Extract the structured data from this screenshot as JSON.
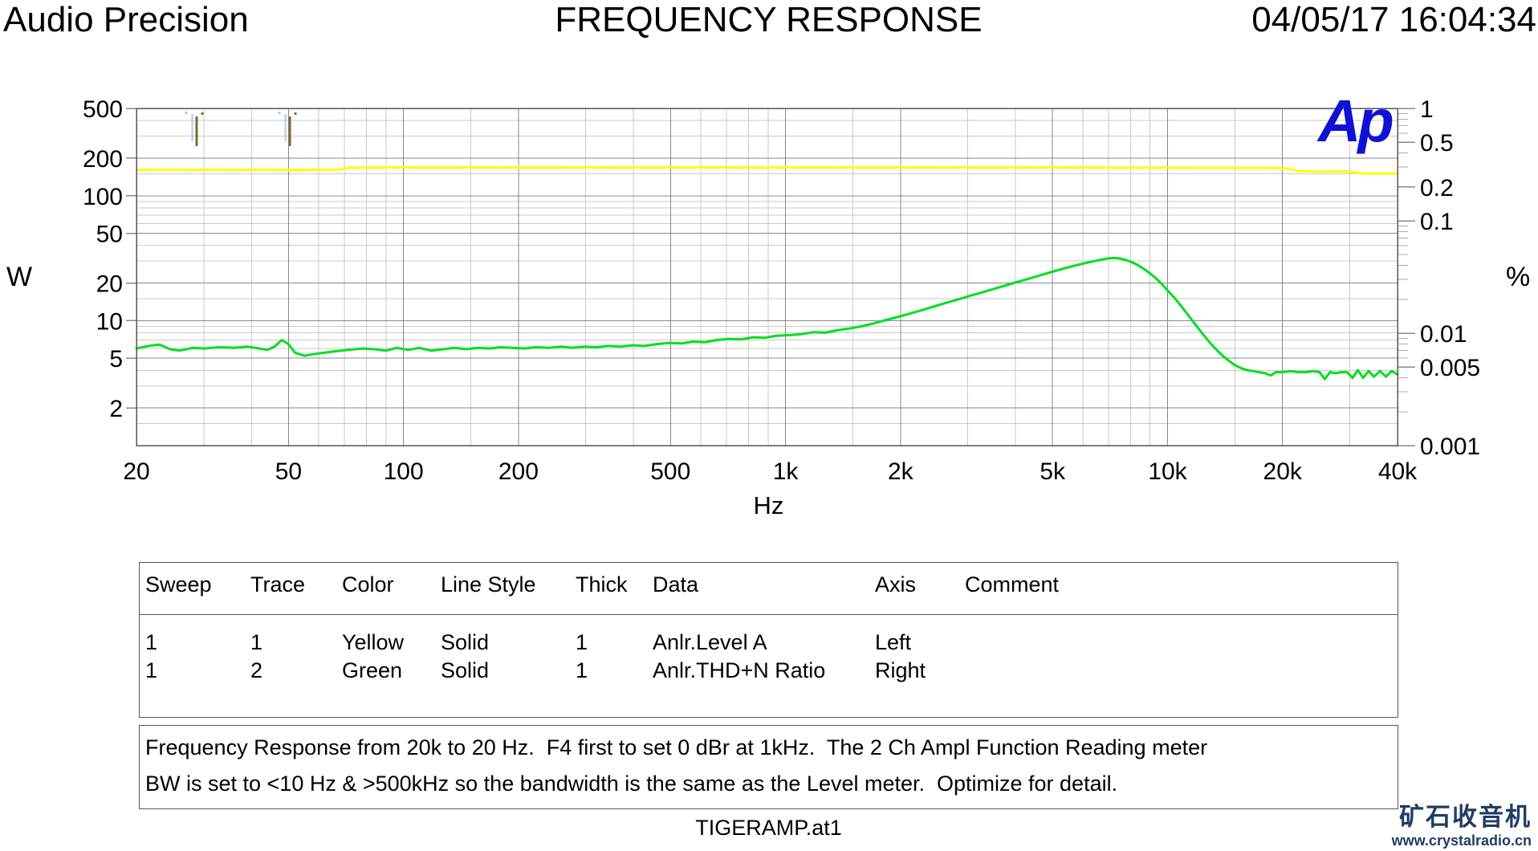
{
  "header": {
    "app_name": "Audio Precision",
    "title": "FREQUENCY RESPONSE",
    "timestamp": "04/05/17 16:04:34"
  },
  "logo": "Ap",
  "chart_data": {
    "type": "line",
    "title": "FREQUENCY RESPONSE",
    "grid": true,
    "colors": {
      "grid_major": "#888888",
      "grid_minor": "#c9c9c9",
      "border": "#555555",
      "marker_blue": "#a9cbe9",
      "marker_olive": "#7d6a33"
    },
    "x_axis": {
      "label": "Hz",
      "scale": "log",
      "min": 20,
      "max": 40000,
      "major_ticks": [
        {
          "f": 20,
          "label": "20"
        },
        {
          "f": 50,
          "label": "50"
        },
        {
          "f": 100,
          "label": "100"
        },
        {
          "f": 200,
          "label": "200"
        },
        {
          "f": 500,
          "label": "500"
        },
        {
          "f": 1000,
          "label": "1k"
        },
        {
          "f": 2000,
          "label": "2k"
        },
        {
          "f": 5000,
          "label": "5k"
        },
        {
          "f": 10000,
          "label": "10k"
        },
        {
          "f": 20000,
          "label": "20k"
        },
        {
          "f": 40000,
          "label": "40k"
        }
      ],
      "minor_ticks": [
        30,
        40,
        60,
        70,
        80,
        90,
        150,
        300,
        400,
        600,
        700,
        800,
        900,
        1500,
        3000,
        4000,
        6000,
        7000,
        8000,
        9000,
        15000,
        30000
      ]
    },
    "left_axis": {
      "label": "W",
      "scale": "log",
      "min": 1,
      "max": 500,
      "major_ticks": [
        {
          "v": 500,
          "label": "500"
        },
        {
          "v": 200,
          "label": "200"
        },
        {
          "v": 100,
          "label": "100"
        },
        {
          "v": 50,
          "label": "50"
        },
        {
          "v": 20,
          "label": "20"
        },
        {
          "v": 10,
          "label": "10"
        },
        {
          "v": 5,
          "label": "5"
        },
        {
          "v": 2,
          "label": "2"
        }
      ],
      "minor_ticks": [
        400,
        300,
        150,
        90,
        80,
        70,
        60,
        40,
        30,
        15,
        9,
        8,
        7,
        6,
        4,
        3,
        1.5
      ]
    },
    "right_axis": {
      "label": "%",
      "scale": "log",
      "min": 0.001,
      "max": 1,
      "major_ticks": [
        {
          "v": 1,
          "label": "1"
        },
        {
          "v": 0.5,
          "label": "0.5"
        },
        {
          "v": 0.2,
          "label": "0.2"
        },
        {
          "v": 0.1,
          "label": "0.1"
        },
        {
          "v": 0.01,
          "label": "0.01"
        },
        {
          "v": 0.005,
          "label": "0.005"
        },
        {
          "v": 0.001,
          "label": "0.001"
        }
      ],
      "minor_ticks": [
        0.9,
        0.8,
        0.7,
        0.6,
        0.4,
        0.3,
        0.09,
        0.08,
        0.07,
        0.06,
        0.05,
        0.04,
        0.03,
        0.02,
        0.009,
        0.008,
        0.007,
        0.006,
        0.004,
        0.003,
        0.002
      ]
    },
    "cursor_markers": [
      {
        "hz": 28.4
      },
      {
        "hz": 49.8
      }
    ],
    "series": [
      {
        "name": "Anlr.Level A",
        "axis": "left",
        "units": "W",
        "color": "#ffff00",
        "points": [
          [
            20,
            161
          ],
          [
            24,
            162
          ],
          [
            28,
            161
          ],
          [
            33,
            161.5
          ],
          [
            38,
            161
          ],
          [
            44,
            161.5
          ],
          [
            50,
            161
          ],
          [
            57,
            161
          ],
          [
            63,
            161.5
          ],
          [
            68,
            162
          ],
          [
            73,
            168
          ],
          [
            82,
            168
          ],
          [
            95,
            168.5
          ],
          [
            120,
            168
          ],
          [
            160,
            168.5
          ],
          [
            220,
            168
          ],
          [
            300,
            168.5
          ],
          [
            420,
            168
          ],
          [
            600,
            168.5
          ],
          [
            850,
            168
          ],
          [
            1200,
            168.5
          ],
          [
            1700,
            168
          ],
          [
            2400,
            168.5
          ],
          [
            3400,
            168
          ],
          [
            4800,
            168.5
          ],
          [
            6800,
            168
          ],
          [
            9600,
            168
          ],
          [
            13000,
            167.5
          ],
          [
            16000,
            167
          ],
          [
            19000,
            166.5
          ],
          [
            20500,
            165
          ],
          [
            21300,
            161
          ],
          [
            22000,
            157
          ],
          [
            23500,
            156.5
          ],
          [
            25500,
            156
          ],
          [
            27500,
            156.5
          ],
          [
            29500,
            156
          ],
          [
            30800,
            154
          ],
          [
            32000,
            151
          ],
          [
            34000,
            150.5
          ],
          [
            36500,
            151
          ],
          [
            38500,
            150.5
          ],
          [
            40000,
            150.5
          ]
        ]
      },
      {
        "name": "Anlr.THD+N Ratio",
        "axis": "right",
        "units": "%",
        "color": "#00df1f",
        "points": [
          [
            20,
            0.0073
          ],
          [
            21.5,
            0.0077
          ],
          [
            23,
            0.0079
          ],
          [
            24.5,
            0.0072
          ],
          [
            26,
            0.007
          ],
          [
            28,
            0.0074
          ],
          [
            30,
            0.0073
          ],
          [
            33,
            0.0075
          ],
          [
            36,
            0.0074
          ],
          [
            39,
            0.0076
          ],
          [
            42,
            0.0073
          ],
          [
            44,
            0.0071
          ],
          [
            46,
            0.0076
          ],
          [
            48,
            0.0087
          ],
          [
            50,
            0.008
          ],
          [
            52,
            0.0067
          ],
          [
            55,
            0.0063
          ],
          [
            58,
            0.0065
          ],
          [
            62,
            0.0067
          ],
          [
            66,
            0.0069
          ],
          [
            72,
            0.0071
          ],
          [
            78,
            0.0073
          ],
          [
            84,
            0.0072
          ],
          [
            90,
            0.007
          ],
          [
            96,
            0.0074
          ],
          [
            103,
            0.0071
          ],
          [
            110,
            0.0074
          ],
          [
            118,
            0.007
          ],
          [
            127,
            0.0072
          ],
          [
            136,
            0.0074
          ],
          [
            146,
            0.0072
          ],
          [
            157,
            0.0074
          ],
          [
            168,
            0.0073
          ],
          [
            180,
            0.0075
          ],
          [
            193,
            0.0074
          ],
          [
            207,
            0.0073
          ],
          [
            222,
            0.0075
          ],
          [
            240,
            0.0074
          ],
          [
            258,
            0.0076
          ],
          [
            277,
            0.0074
          ],
          [
            298,
            0.0076
          ],
          [
            320,
            0.0075
          ],
          [
            344,
            0.0077
          ],
          [
            370,
            0.0076
          ],
          [
            398,
            0.0078
          ],
          [
            428,
            0.0077
          ],
          [
            460,
            0.008
          ],
          [
            495,
            0.0082
          ],
          [
            532,
            0.0081
          ],
          [
            572,
            0.0084
          ],
          [
            615,
            0.0083
          ],
          [
            661,
            0.0087
          ],
          [
            711,
            0.0089
          ],
          [
            764,
            0.0088
          ],
          [
            822,
            0.0092
          ],
          [
            884,
            0.0091
          ],
          [
            950,
            0.0095
          ],
          [
            1020,
            0.0096
          ],
          [
            1100,
            0.0098
          ],
          [
            1180,
            0.0102
          ],
          [
            1270,
            0.0101
          ],
          [
            1360,
            0.0106
          ],
          [
            1470,
            0.011
          ],
          [
            1580,
            0.0115
          ],
          [
            1700,
            0.0122
          ],
          [
            1820,
            0.013
          ],
          [
            1960,
            0.0139
          ],
          [
            2110,
            0.0149
          ],
          [
            2270,
            0.016
          ],
          [
            2440,
            0.0172
          ],
          [
            2620,
            0.0185
          ],
          [
            2820,
            0.0199
          ],
          [
            3030,
            0.0214
          ],
          [
            3260,
            0.023
          ],
          [
            3500,
            0.0247
          ],
          [
            3770,
            0.0266
          ],
          [
            4050,
            0.0286
          ],
          [
            4360,
            0.0307
          ],
          [
            4680,
            0.033
          ],
          [
            5040,
            0.0355
          ],
          [
            5410,
            0.038
          ],
          [
            5820,
            0.0405
          ],
          [
            6260,
            0.043
          ],
          [
            6730,
            0.0452
          ],
          [
            7000,
            0.0463
          ],
          [
            7230,
            0.0468
          ],
          [
            7500,
            0.0462
          ],
          [
            7780,
            0.0448
          ],
          [
            8070,
            0.0428
          ],
          [
            8370,
            0.0402
          ],
          [
            8680,
            0.0372
          ],
          [
            9000,
            0.034
          ],
          [
            9340,
            0.0306
          ],
          [
            9680,
            0.0272
          ],
          [
            10000,
            0.024
          ],
          [
            10420,
            0.0207
          ],
          [
            10800,
            0.0178
          ],
          [
            11200,
            0.0152
          ],
          [
            11620,
            0.0129
          ],
          [
            12050,
            0.011
          ],
          [
            12500,
            0.0094
          ],
          [
            12960,
            0.0081
          ],
          [
            13440,
            0.0071
          ],
          [
            13940,
            0.0063
          ],
          [
            14460,
            0.0057
          ],
          [
            15000,
            0.0052
          ],
          [
            15550,
            0.0049
          ],
          [
            16130,
            0.0047
          ],
          [
            16730,
            0.0046
          ],
          [
            17350,
            0.0045
          ],
          [
            18000,
            0.0044
          ],
          [
            18600,
            0.0042
          ],
          [
            19200,
            0.0045
          ],
          [
            20000,
            0.0045
          ],
          [
            21000,
            0.0046
          ],
          [
            22000,
            0.0045
          ],
          [
            23000,
            0.0045
          ],
          [
            24000,
            0.0046
          ],
          [
            25000,
            0.0045
          ],
          [
            25800,
            0.0039
          ],
          [
            26600,
            0.0045
          ],
          [
            27500,
            0.0044
          ],
          [
            28500,
            0.0045
          ],
          [
            29500,
            0.0045
          ],
          [
            30500,
            0.004
          ],
          [
            31500,
            0.0047
          ],
          [
            32500,
            0.004
          ],
          [
            33600,
            0.0046
          ],
          [
            34700,
            0.0041
          ],
          [
            36000,
            0.0046
          ],
          [
            37300,
            0.0041
          ],
          [
            38600,
            0.0046
          ],
          [
            40000,
            0.0043
          ]
        ]
      }
    ]
  },
  "legend_table": {
    "headers": [
      "Sweep",
      "Trace",
      "Color",
      "Line Style",
      "Thick",
      "Data",
      "Axis",
      "Comment"
    ],
    "rows": [
      [
        "1",
        "1",
        "Yellow",
        "Solid",
        "1",
        "Anlr.Level A",
        "Left",
        ""
      ],
      [
        "1",
        "2",
        "Green",
        "Solid",
        "1",
        "Anlr.THD+N Ratio",
        "Right",
        ""
      ]
    ]
  },
  "comment_box": {
    "line1": "Frequency Response from 20k to 20 Hz.  F4 first to set 0 dBr at 1kHz.  The 2 Ch Ampl Function Reading meter",
    "line2": "BW is set to <10 Hz & >500kHz so the bandwidth is the same as the Level meter.  Optimize for detail."
  },
  "footer": {
    "file_label": "TIGERAMP.at1"
  },
  "watermark": {
    "title": "矿石收音机",
    "url": "www.crystalradio.cn"
  }
}
